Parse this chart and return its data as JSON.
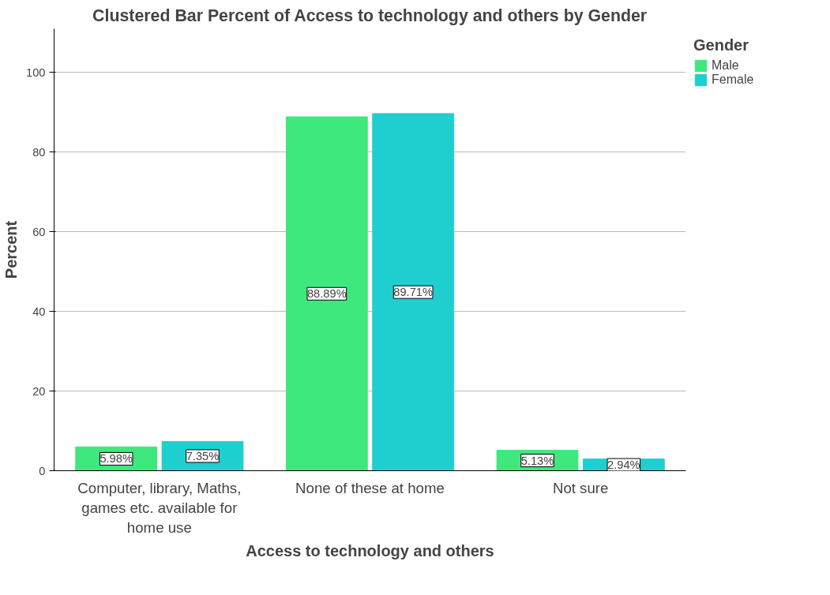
{
  "chart_data": {
    "type": "bar",
    "title": "Clustered Bar Percent of Access to technology and others by Gender",
    "xlabel": "Access to technology and others",
    "ylabel": "Percent",
    "legend_title": "Gender",
    "categories": [
      "Computer, library, Maths, games etc. available for home use",
      "None of these at home",
      "Not sure"
    ],
    "series": [
      {
        "name": "Male",
        "color": "#3ee87c",
        "values": [
          5.98,
          88.89,
          5.13
        ],
        "value_labels": [
          "5.98%",
          "88.89%",
          "5.13%"
        ]
      },
      {
        "name": "Female",
        "color": "#1fcfcf",
        "values": [
          7.35,
          89.71,
          2.94
        ],
        "value_labels": [
          "7.35%",
          "89.71%",
          "2.94%"
        ]
      }
    ],
    "ylim": [
      0,
      111
    ],
    "yticks": [
      0,
      20,
      40,
      60,
      80,
      100
    ],
    "grid": "y",
    "legend": "top right"
  }
}
